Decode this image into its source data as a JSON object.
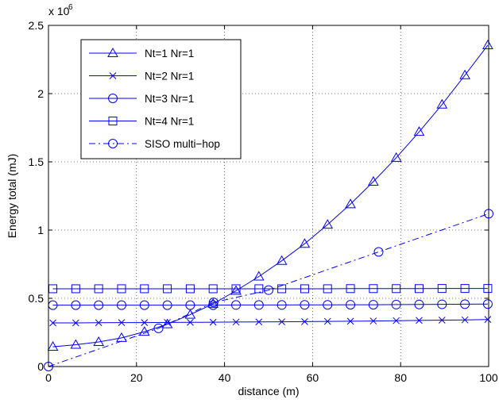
{
  "chart_data": {
    "type": "line",
    "title": "",
    "xlabel": "distance (m)",
    "ylabel": "Energy total (mJ)",
    "y_scale_label": "x 10",
    "y_scale_exponent": "6",
    "xlim": [
      0,
      100
    ],
    "ylim": [
      0,
      2.5
    ],
    "y_multiplier": 1000000,
    "xticks": [
      0,
      20,
      40,
      60,
      80,
      100
    ],
    "yticks": [
      0,
      0.5,
      1,
      1.5,
      2,
      2.5
    ],
    "xtick_labels": [
      "0",
      "20",
      "40",
      "60",
      "80",
      "100"
    ],
    "ytick_labels": [
      "0",
      "0.5",
      "1",
      "1.5",
      "2",
      "2.5"
    ],
    "grid": true,
    "legend_position": "top-left",
    "line_color": "#0000ff",
    "series": [
      {
        "name": "Nt=1 Nr=1",
        "marker": "triangle",
        "line_style": "solid",
        "x": [
          1,
          6.2,
          11.4,
          16.6,
          21.8,
          27,
          32.2,
          37.4,
          42.6,
          47.8,
          53,
          58.2,
          63.4,
          68.6,
          73.8,
          79,
          84.2,
          89.4,
          94.6,
          99.8
        ],
        "y": [
          0.145,
          0.16,
          0.18,
          0.21,
          0.255,
          0.31,
          0.38,
          0.46,
          0.555,
          0.66,
          0.775,
          0.9,
          1.04,
          1.19,
          1.355,
          1.53,
          1.72,
          1.92,
          2.135,
          2.355
        ]
      },
      {
        "name": "Nt=2 Nr=1",
        "marker": "x",
        "line_style": "solid",
        "x": [
          1,
          6.2,
          11.4,
          16.6,
          21.8,
          27,
          32.2,
          37.4,
          42.6,
          47.8,
          53,
          58.2,
          63.4,
          68.6,
          73.8,
          79,
          84.2,
          89.4,
          94.6,
          99.8
        ],
        "y": [
          0.32,
          0.32,
          0.321,
          0.322,
          0.322,
          0.323,
          0.324,
          0.325,
          0.326,
          0.327,
          0.328,
          0.329,
          0.331,
          0.332,
          0.334,
          0.336,
          0.338,
          0.34,
          0.342,
          0.345
        ]
      },
      {
        "name": "Nt=3 Nr=1",
        "marker": "circle",
        "line_style": "solid",
        "x": [
          1,
          6.2,
          11.4,
          16.6,
          21.8,
          27,
          32.2,
          37.4,
          42.6,
          47.8,
          53,
          58.2,
          63.4,
          68.6,
          73.8,
          79,
          84.2,
          89.4,
          94.6,
          99.8
        ],
        "y": [
          0.45,
          0.45,
          0.45,
          0.45,
          0.45,
          0.45,
          0.45,
          0.45,
          0.451,
          0.451,
          0.451,
          0.452,
          0.452,
          0.453,
          0.453,
          0.454,
          0.455,
          0.456,
          0.457,
          0.458
        ]
      },
      {
        "name": "Nt=4 Nr=1",
        "marker": "square",
        "line_style": "solid",
        "x": [
          1,
          6.2,
          11.4,
          16.6,
          21.8,
          27,
          32.2,
          37.4,
          42.6,
          47.8,
          53,
          58.2,
          63.4,
          68.6,
          73.8,
          79,
          84.2,
          89.4,
          94.6,
          99.8
        ],
        "y": [
          0.57,
          0.57,
          0.57,
          0.57,
          0.57,
          0.57,
          0.57,
          0.57,
          0.57,
          0.57,
          0.57,
          0.57,
          0.57,
          0.571,
          0.571,
          0.571,
          0.571,
          0.572,
          0.572,
          0.572
        ]
      },
      {
        "name": "SISO multi−hop",
        "marker": "circle",
        "line_style": "dashdot",
        "x": [
          0,
          25,
          37.5,
          50,
          75,
          100
        ],
        "y": [
          0,
          0.28,
          0.47,
          0.56,
          0.84,
          1.12
        ]
      }
    ]
  }
}
